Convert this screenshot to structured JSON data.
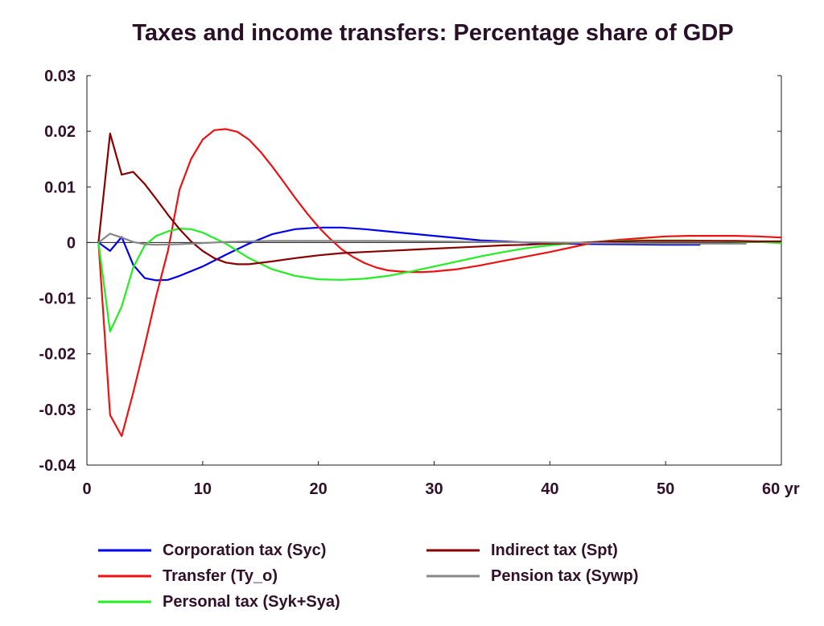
{
  "chart_data": {
    "type": "line",
    "title": "Taxes and income transfers: Percentage share of GDP",
    "xlabel": "",
    "ylabel": "",
    "xlim": [
      0,
      60
    ],
    "ylim": [
      -0.04,
      0.03
    ],
    "x_ticks": [
      0,
      10,
      20,
      30,
      40,
      50,
      60
    ],
    "x_tick_labels": [
      "0",
      "10",
      "20",
      "30",
      "40",
      "50",
      "60 yr"
    ],
    "y_ticks": [
      0.03,
      0.02,
      0.01,
      0,
      -0.01,
      -0.02,
      -0.03,
      -0.04
    ],
    "y_tick_labels": [
      "0.03",
      "0.02",
      "0.01",
      "0",
      "-0.01",
      "-0.02",
      "-0.03",
      "-0.04"
    ],
    "grid": false,
    "legend_position": "bottom",
    "series": [
      {
        "name": "Corporation tax (Syc)",
        "color": "#0000ee",
        "x": [
          1,
          2,
          3,
          4,
          5,
          6,
          7,
          8,
          10,
          12,
          14,
          16,
          18,
          20,
          22,
          24,
          26,
          28,
          30,
          32,
          34,
          36,
          38,
          40,
          45,
          50,
          53
        ],
        "y": [
          0,
          -0.0015,
          0.001,
          -0.004,
          -0.0064,
          -0.0068,
          -0.0067,
          -0.006,
          -0.0043,
          -0.0022,
          -0.0002,
          0.0015,
          0.0024,
          0.0027,
          0.0027,
          0.0024,
          0.002,
          0.0016,
          0.0012,
          0.0008,
          0.0004,
          0.0002,
          0.0,
          -0.0002,
          -0.0003,
          -0.0004,
          -0.0004
        ]
      },
      {
        "name": "Transfer (Ty_o)",
        "color": "#ee1111",
        "x": [
          1,
          2,
          3,
          4,
          5,
          6,
          7,
          8,
          9,
          10,
          11,
          12,
          13,
          14,
          15,
          16,
          17,
          18,
          19,
          20,
          21,
          22,
          23,
          24,
          25,
          26,
          27,
          28,
          29,
          30,
          32,
          34,
          36,
          38,
          40,
          42,
          44,
          46,
          48,
          50,
          52,
          54,
          56,
          58,
          60
        ],
        "y": [
          0,
          -0.031,
          -0.0348,
          -0.027,
          -0.0185,
          -0.0095,
          -0.0015,
          0.0095,
          0.015,
          0.0185,
          0.0202,
          0.0204,
          0.0199,
          0.0185,
          0.0163,
          0.0137,
          0.0109,
          0.008,
          0.0053,
          0.0028,
          0.0007,
          -0.0012,
          -0.0026,
          -0.0037,
          -0.0045,
          -0.005,
          -0.0052,
          -0.0053,
          -0.0053,
          -0.0052,
          -0.0048,
          -0.0041,
          -0.0033,
          -0.0025,
          -0.0017,
          -0.0008,
          0.0001,
          0.0005,
          0.0008,
          0.0011,
          0.0012,
          0.0012,
          0.0012,
          0.0011,
          0.0009
        ]
      },
      {
        "name": "Personal tax (Syk+Sya)",
        "color": "#22ee22",
        "x": [
          1,
          2,
          3,
          4,
          5,
          6,
          7,
          8,
          9,
          10,
          12,
          14,
          16,
          18,
          20,
          22,
          24,
          26,
          28,
          30,
          32,
          34,
          36,
          38,
          40,
          42,
          44,
          46,
          48,
          50,
          52,
          54,
          56,
          58,
          60
        ],
        "y": [
          0,
          -0.016,
          -0.0115,
          -0.0045,
          -0.0005,
          0.0012,
          0.002,
          0.0025,
          0.0024,
          0.0018,
          -0.0002,
          -0.0028,
          -0.0048,
          -0.006,
          -0.0066,
          -0.0067,
          -0.0065,
          -0.006,
          -0.0052,
          -0.0043,
          -0.0034,
          -0.0025,
          -0.0017,
          -0.001,
          -0.0005,
          -0.0001,
          0.0001,
          0.0003,
          0.0004,
          0.0004,
          0.0004,
          0.0003,
          0.0002,
          0.0001,
          -0.0001
        ]
      },
      {
        "name": "Indirect tax (Spt)",
        "color": "#880000",
        "x": [
          1,
          2,
          3,
          4,
          5,
          6,
          7,
          8,
          9,
          10,
          11,
          12,
          13,
          14,
          16,
          18,
          20,
          22,
          24,
          26,
          28,
          30,
          32,
          34,
          36,
          38,
          40,
          42,
          44,
          46,
          48,
          50,
          52,
          54,
          56,
          58,
          60
        ],
        "y": [
          0,
          0.0196,
          0.0122,
          0.0127,
          0.0105,
          0.0078,
          0.005,
          0.0024,
          0.0002,
          -0.0015,
          -0.0028,
          -0.0036,
          -0.0039,
          -0.0039,
          -0.0034,
          -0.0028,
          -0.0023,
          -0.0019,
          -0.0017,
          -0.0015,
          -0.0013,
          -0.0011,
          -0.0009,
          -0.0007,
          -0.0005,
          -0.0004,
          -0.0002,
          -0.0001,
          0.0001,
          0.0002,
          0.0003,
          0.0003,
          0.0003,
          0.0003,
          0.0003,
          0.0002,
          0.0002
        ]
      },
      {
        "name": "Pension tax (Sywp)",
        "color": "#888888",
        "x": [
          1,
          2,
          3,
          4,
          5,
          6,
          8,
          10,
          12,
          14,
          16,
          18,
          20,
          25,
          30,
          35,
          40,
          45,
          50,
          55,
          57
        ],
        "y": [
          0,
          0.0016,
          0.0009,
          0.0001,
          -0.0003,
          -0.0004,
          -0.0003,
          -0.0001,
          0.0001,
          0.0002,
          0.0003,
          0.0003,
          0.0003,
          0.0003,
          0.0002,
          0.0001,
          0.0,
          -0.0001,
          -0.0002,
          -0.0002,
          -0.0002
        ]
      }
    ]
  }
}
